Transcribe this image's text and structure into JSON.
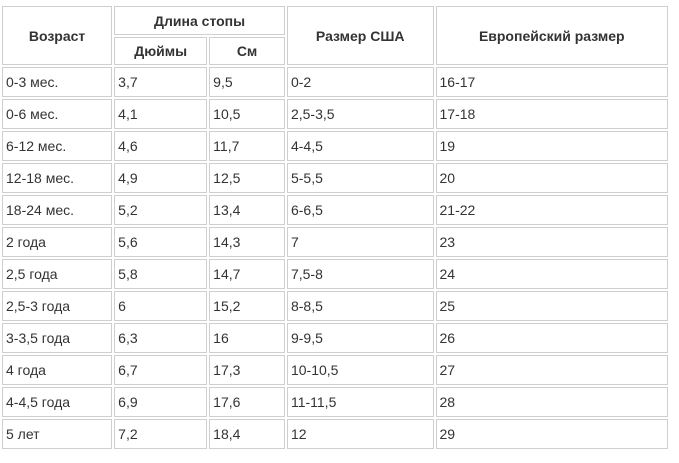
{
  "headers": {
    "age": "Возраст",
    "foot_length": "Длина стопы",
    "inches": "Дюймы",
    "cm": "См",
    "us_size": "Размер США",
    "eu_size": "Европейский размер"
  },
  "rows": [
    {
      "age": "0-3 мес.",
      "inches": "3,7",
      "cm": "9,5",
      "us": "0-2",
      "eu": "16-17"
    },
    {
      "age": "0-6 мес.",
      "inches": "4,1",
      "cm": "10,5",
      "us": "2,5-3,5",
      "eu": "17-18"
    },
    {
      "age": "6-12 мес.",
      "inches": "4,6",
      "cm": "11,7",
      "us": "4-4,5",
      "eu": "19"
    },
    {
      "age": "12-18 мес.",
      "inches": "4,9",
      "cm": "12,5",
      "us": "5-5,5",
      "eu": "20"
    },
    {
      "age": "18-24 мес.",
      "inches": "5,2",
      "cm": "13,4",
      "us": "6-6,5",
      "eu": "21-22"
    },
    {
      "age": "2 года",
      "inches": "5,6",
      "cm": "14,3",
      "us": "7",
      "eu": "23"
    },
    {
      "age": "2,5 года",
      "inches": "5,8",
      "cm": "14,7",
      "us": "7,5-8",
      "eu": "24"
    },
    {
      "age": "2,5-3 года",
      "inches": "6",
      "cm": "15,2",
      "us": "8-8,5",
      "eu": "25"
    },
    {
      "age": "3-3,5 года",
      "inches": "6,3",
      "cm": "16",
      "us": "9-9,5",
      "eu": "26"
    },
    {
      "age": "4 года",
      "inches": "6,7",
      "cm": "17,3",
      "us": "10-10,5",
      "eu": "27"
    },
    {
      "age": "4-4,5 года",
      "inches": "6,9",
      "cm": "17,6",
      "us": "11-11,5",
      "eu": "28"
    },
    {
      "age": "5 лет",
      "inches": "7,2",
      "cm": "18,4",
      "us": "12",
      "eu": "29"
    }
  ]
}
